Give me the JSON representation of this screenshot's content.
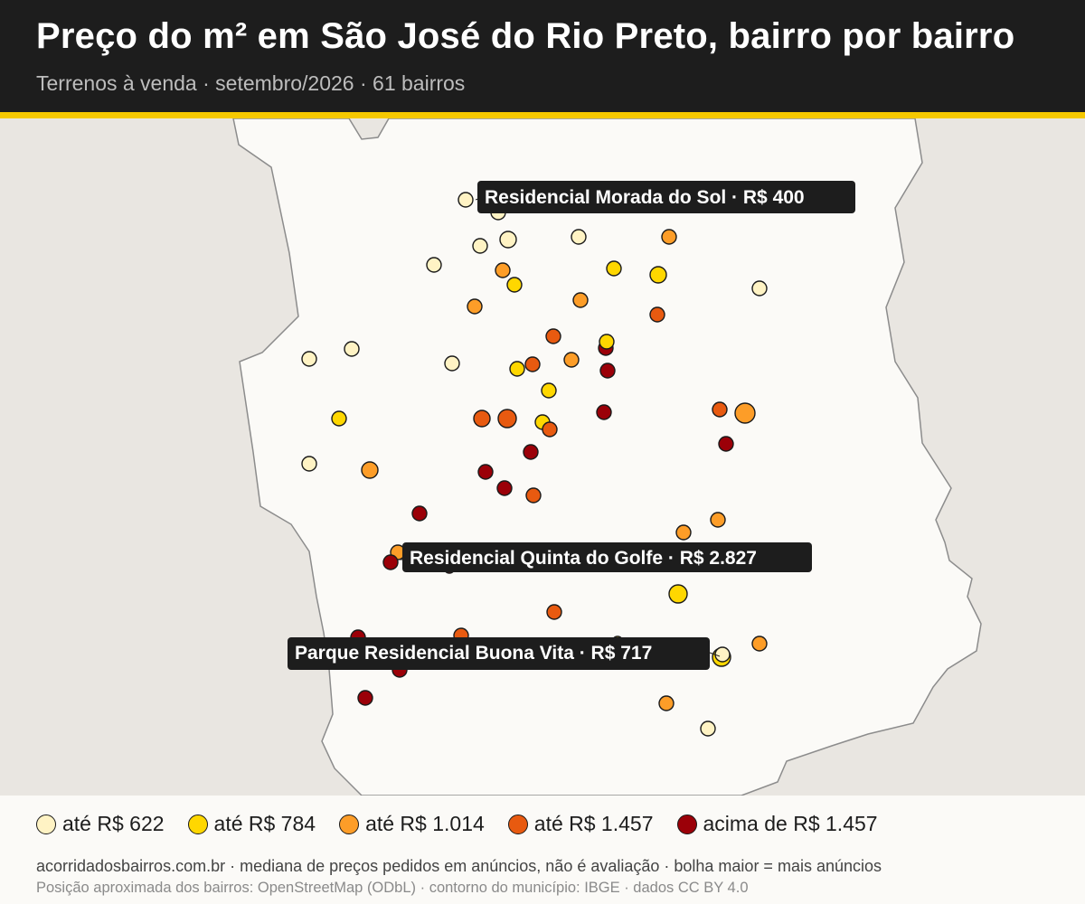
{
  "header": {
    "title": "Preço do m² em São José do Rio Preto, bairro por bairro",
    "subtitle": "Terrenos à venda · setembro/2026 · 61 bairros"
  },
  "colors": {
    "bin1": "#fff3c4",
    "bin2": "#ffd700",
    "bin3": "#fd9d28",
    "bin4": "#e85a10",
    "bin5": "#9b0008",
    "land": "#fbfaf7",
    "outside": "#e9e6e1",
    "label_bg": "#1d1d1d",
    "accent": "#f5c800"
  },
  "legend": [
    {
      "label": "até R$ 622",
      "color": "#fff3c4"
    },
    {
      "label": "até R$ 784",
      "color": "#ffd700"
    },
    {
      "label": "até R$ 1.014",
      "color": "#fd9d28"
    },
    {
      "label": "até R$ 1.457",
      "color": "#e85a10"
    },
    {
      "label": "acima de R$ 1.457",
      "color": "#9b0008"
    }
  ],
  "callouts": [
    {
      "text": "Residencial Morada do Sol · R$ 400"
    },
    {
      "text": "Residencial Quinta do Golfe · R$ 2.827"
    },
    {
      "text": "Parque Residencial Buona Vita · R$ 717"
    }
  ],
  "footer": {
    "note": "acorridadosbairros.com.br · mediana de preços pedidos em anúncios, não é avaliação · bolha maior = mais anúncios",
    "credit": "Posição aproximada dos bairros: OpenStreetMap (ODbL) · contorno do município: IBGE · dados CC BY 4.0"
  }
}
